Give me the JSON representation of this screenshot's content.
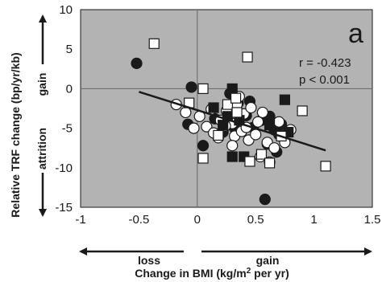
{
  "chart_data": {
    "type": "scatter",
    "panel_label": "a",
    "xlabel": "Change in BMI (kg/m",
    "xlabel_sup": "2",
    "xlabel_tail": " per yr)",
    "ylabel": "Relative TRF change (bp/yr/kb)",
    "x_range": [
      -1,
      1.5
    ],
    "y_range": [
      -15,
      10
    ],
    "x_ticks": [
      "-1",
      "-0.5",
      "0",
      "0.5",
      "1",
      "1.5"
    ],
    "x_tick_values": [
      -1,
      -0.5,
      0,
      0.5,
      1,
      1.5
    ],
    "y_ticks": [
      "10",
      "5",
      "0",
      "-5",
      "-10",
      "-15"
    ],
    "y_tick_values": [
      10,
      5,
      0,
      -5,
      -10,
      -15
    ],
    "grid": false,
    "plot_background": "#b3b3b3",
    "direction_labels": {
      "x_loss": "loss",
      "x_gain": "gain",
      "y_gain": "gain",
      "y_attrition": "attrition"
    },
    "annotations": {
      "r": "r = -0.423",
      "p": "p < 0.001"
    },
    "regression_line": {
      "x": [
        -0.5,
        1.1
      ],
      "y": [
        -0.4,
        -7.8
      ]
    },
    "series": [
      {
        "marker": "filled-circle",
        "color": "#1a1a1a",
        "points": [
          [
            -0.52,
            3.2
          ],
          [
            -0.05,
            0.2
          ],
          [
            -0.08,
            -4.5
          ],
          [
            0.05,
            -7.2
          ],
          [
            0.15,
            -3.8
          ],
          [
            0.22,
            -5.5
          ],
          [
            0.32,
            -5.0
          ],
          [
            0.35,
            -1.8
          ],
          [
            0.42,
            -3.4
          ],
          [
            0.45,
            -1.6
          ],
          [
            0.55,
            -4.0
          ],
          [
            0.58,
            -14.0
          ],
          [
            0.62,
            -3.5
          ],
          [
            0.66,
            -5.2
          ],
          [
            0.68,
            -8.0
          ],
          [
            0.7,
            -5.8
          ],
          [
            0.72,
            -4.5
          ],
          [
            0.6,
            -7.0
          ],
          [
            0.48,
            -4.9
          ],
          [
            0.28,
            -0.6
          ]
        ]
      },
      {
        "marker": "open-circle",
        "color": "#ffffff",
        "points": [
          [
            -0.18,
            -2.0
          ],
          [
            -0.1,
            -3.0
          ],
          [
            -0.03,
            -5.0
          ],
          [
            0.02,
            -3.5
          ],
          [
            0.08,
            -4.8
          ],
          [
            0.12,
            -2.6
          ],
          [
            0.18,
            -6.2
          ],
          [
            0.2,
            -4.0
          ],
          [
            0.25,
            -2.8
          ],
          [
            0.28,
            -3.6
          ],
          [
            0.3,
            -4.4
          ],
          [
            0.32,
            -6.0
          ],
          [
            0.34,
            -2.0
          ],
          [
            0.36,
            -1.0
          ],
          [
            0.38,
            -5.4
          ],
          [
            0.4,
            -3.2
          ],
          [
            0.42,
            -4.9
          ],
          [
            0.44,
            -6.5
          ],
          [
            0.46,
            -2.4
          ],
          [
            0.5,
            -5.8
          ],
          [
            0.52,
            -4.2
          ],
          [
            0.54,
            -8.6
          ],
          [
            0.56,
            -3.0
          ],
          [
            0.6,
            -6.8
          ],
          [
            0.62,
            -9.3
          ],
          [
            0.66,
            -7.5
          ],
          [
            0.7,
            -4.2
          ],
          [
            0.75,
            -6.8
          ],
          [
            0.8,
            -5.2
          ],
          [
            0.14,
            -5.6
          ],
          [
            0.24,
            -4.7
          ],
          [
            0.3,
            -7.2
          ]
        ]
      },
      {
        "marker": "filled-square",
        "color": "#1a1a1a",
        "points": [
          [
            0.3,
            0.0
          ],
          [
            0.14,
            -2.4
          ],
          [
            0.26,
            -3.5
          ],
          [
            0.22,
            -4.6
          ],
          [
            0.3,
            -8.6
          ],
          [
            0.4,
            -8.6
          ],
          [
            0.62,
            -4.6
          ],
          [
            0.75,
            -1.4
          ],
          [
            0.78,
            -5.5
          ],
          [
            0.36,
            -4.0
          ]
        ]
      },
      {
        "marker": "open-square",
        "color": "#ffffff",
        "points": [
          [
            -0.37,
            5.7
          ],
          [
            0.43,
            4.0
          ],
          [
            0.05,
            0.0
          ],
          [
            -0.07,
            -1.8
          ],
          [
            0.05,
            -8.8
          ],
          [
            0.18,
            -5.9
          ],
          [
            0.26,
            -2.0
          ],
          [
            0.33,
            -1.2
          ],
          [
            0.45,
            -9.2
          ],
          [
            0.55,
            -8.3
          ],
          [
            0.62,
            -9.4
          ],
          [
            0.72,
            -6.0
          ],
          [
            0.9,
            -2.8
          ],
          [
            1.1,
            -9.8
          ],
          [
            0.34,
            -3.0
          ]
        ]
      }
    ]
  }
}
